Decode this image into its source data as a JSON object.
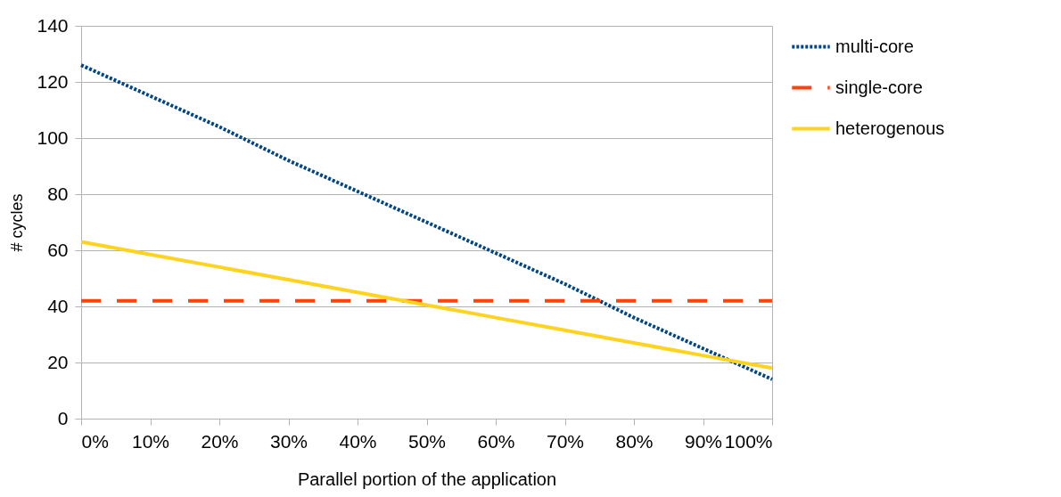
{
  "chart_data": {
    "type": "line",
    "xlabel": "Parallel portion of the application",
    "ylabel": "# cycles",
    "x": [
      0,
      10,
      20,
      30,
      40,
      50,
      60,
      70,
      80,
      90,
      100
    ],
    "xlim": [
      0,
      100
    ],
    "xticks": [
      {
        "value": 0,
        "label": "0%"
      },
      {
        "value": 10,
        "label": "10%"
      },
      {
        "value": 20,
        "label": "20%"
      },
      {
        "value": 30,
        "label": "30%"
      },
      {
        "value": 40,
        "label": "40%"
      },
      {
        "value": 50,
        "label": "50%"
      },
      {
        "value": 60,
        "label": "60%"
      },
      {
        "value": 70,
        "label": "70%"
      },
      {
        "value": 80,
        "label": "80%"
      },
      {
        "value": 90,
        "label": "90%"
      },
      {
        "value": 100,
        "label": "100%"
      }
    ],
    "ylim": [
      0,
      140
    ],
    "yticks": [
      0,
      20,
      40,
      60,
      80,
      100,
      120,
      140
    ],
    "grid": "y",
    "legend": "right",
    "marker": "none",
    "series": [
      {
        "name": "multi-core",
        "color": "#004586",
        "line_style": "dotted",
        "values": [
          126,
          115,
          104,
          92,
          81,
          70,
          59,
          48,
          36,
          25,
          14
        ]
      },
      {
        "name": "single-core",
        "color": "#ff420e",
        "line_style": "dashed",
        "values": [
          42,
          42,
          42,
          42,
          42,
          42,
          42,
          42,
          42,
          42,
          42
        ]
      },
      {
        "name": "heterogenous",
        "color": "#ffd320",
        "line_style": "solid",
        "values": [
          63,
          58.5,
          54,
          49.5,
          45,
          40.5,
          36,
          31.5,
          27,
          22.5,
          18
        ]
      }
    ]
  }
}
